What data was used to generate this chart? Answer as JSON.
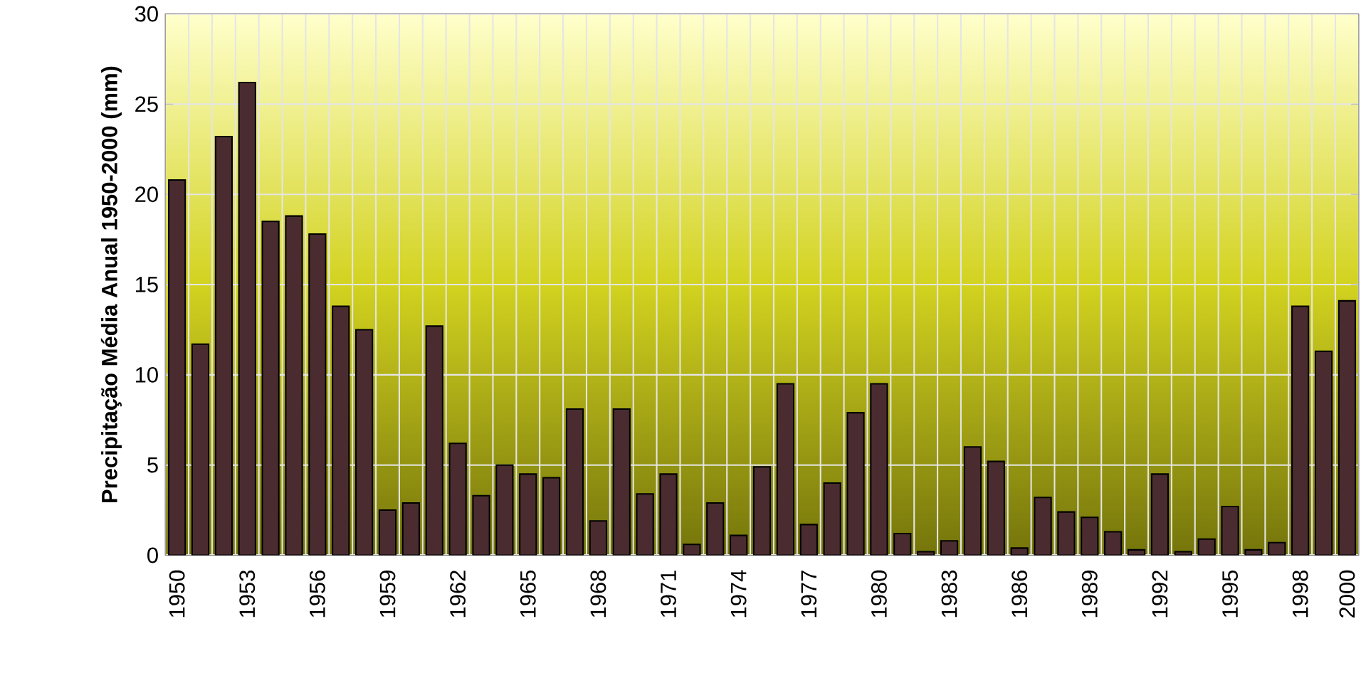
{
  "chart_data": {
    "type": "bar",
    "ylabel": "**Precipitação Média Anual 1950-2000  (mm)**",
    "categories": [
      "1950",
      null,
      null,
      "1953",
      null,
      null,
      "1956",
      null,
      null,
      "1959",
      null,
      null,
      "1962",
      null,
      null,
      "1965",
      null,
      null,
      "1968",
      null,
      null,
      "1971",
      null,
      null,
      "1974",
      null,
      null,
      "1977",
      null,
      null,
      "1980",
      null,
      null,
      "1983",
      null,
      null,
      "1986",
      null,
      null,
      "1989",
      null,
      null,
      "1992",
      null,
      null,
      "1995",
      null,
      null,
      "1998",
      null,
      "2000"
    ],
    "values": [
      20.8,
      11.7,
      23.2,
      26.2,
      18.5,
      18.8,
      17.8,
      13.8,
      12.5,
      2.5,
      2.9,
      12.7,
      6.2,
      3.3,
      5.0,
      4.5,
      4.3,
      8.1,
      1.9,
      8.1,
      3.4,
      4.5,
      0.6,
      2.9,
      1.1,
      4.9,
      9.5,
      1.7,
      4.0,
      7.9,
      9.5,
      1.2,
      0.2,
      0.8,
      6.0,
      5.2,
      0.4,
      3.2,
      2.4,
      2.1,
      1.3,
      0.3,
      4.5,
      0.2,
      0.9,
      2.7,
      0.3,
      0.7,
      13.8,
      11.3,
      14.1
    ],
    "color": "#4a2c30",
    "ylim": [
      0,
      30
    ],
    "yticks": [
      0,
      5,
      10,
      15,
      20,
      25,
      30
    ],
    "grid": true
  }
}
